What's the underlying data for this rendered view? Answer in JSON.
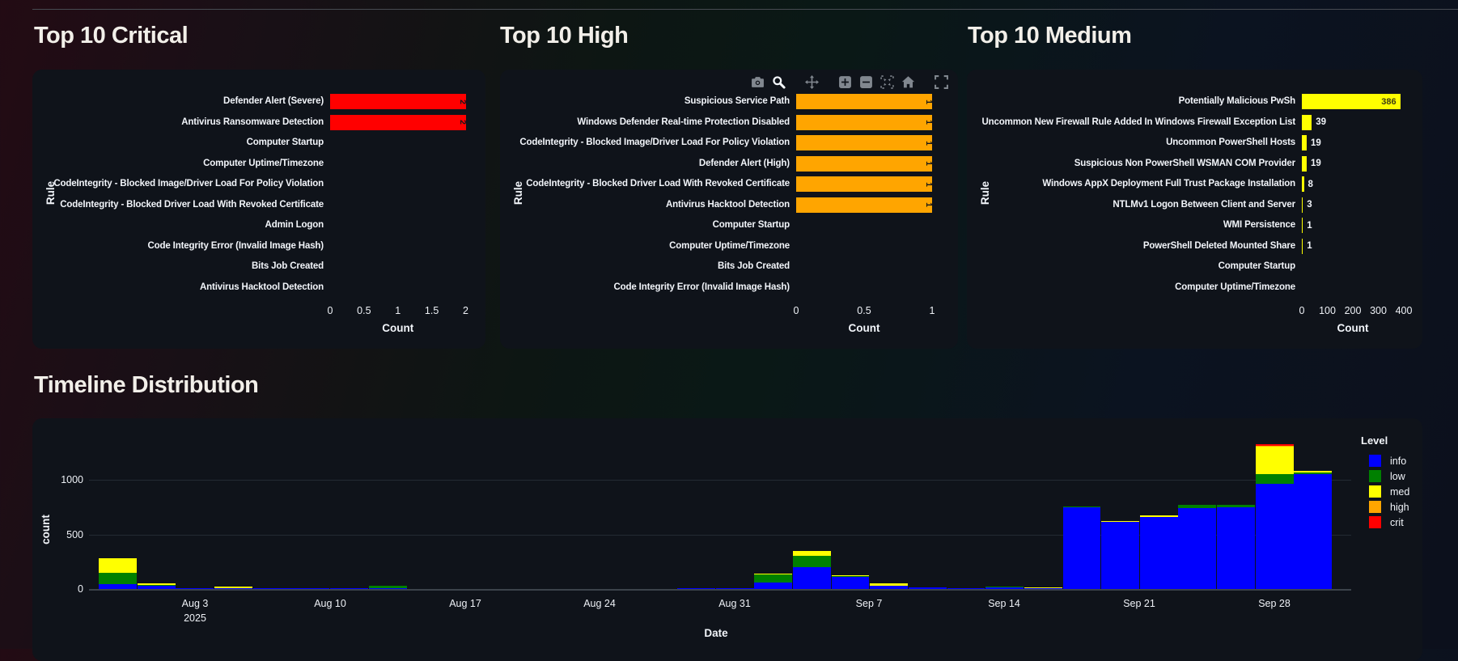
{
  "page": {
    "titles": {
      "critical": "Top 10 Critical",
      "high": "Top 10 High",
      "medium": "Top 10 Medium",
      "timeline": "Timeline Distribution"
    }
  },
  "modebar": {
    "icons": [
      "camera",
      "zoom",
      "pan",
      "zoom-in",
      "zoom-out",
      "autoscale",
      "home",
      "fullscreen"
    ],
    "active": "zoom",
    "color": "#81878f",
    "active_color": "#f4f7fb"
  },
  "chart_data": [
    {
      "id": "critical",
      "type": "bar",
      "orientation": "horizontal",
      "title": "Top 10 Critical",
      "bar_color": "#ff0000",
      "categories": [
        "Defender Alert (Severe)",
        "Antivirus Ransomware Detection",
        "Computer Startup",
        "Computer Uptime/Timezone",
        "CodeIntegrity - Blocked Image/Driver Load For Policy Violation",
        "CodeIntegrity - Blocked Driver Load With Revoked Certificate",
        "Admin Logon",
        "Code Integrity Error (Invalid Image Hash)",
        "Bits Job Created",
        "Antivirus Hacktool Detection"
      ],
      "values": [
        2,
        2,
        0,
        0,
        0,
        0,
        0,
        0,
        0,
        0
      ],
      "xticks": [
        "0",
        "0.5",
        "1",
        "1.5",
        "2"
      ],
      "xtick_values": [
        0,
        0.5,
        1,
        1.5,
        2
      ],
      "xlim": [
        0,
        2
      ],
      "xlabel": "Count",
      "ylabel": "Rule",
      "grid": false
    },
    {
      "id": "high",
      "type": "bar",
      "orientation": "horizontal",
      "title": "Top 10 High",
      "bar_color": "#ffa500",
      "categories": [
        "Suspicious Service Path",
        "Windows Defender Real-time Protection Disabled",
        "CodeIntegrity - Blocked Image/Driver Load For Policy Violation",
        "Defender Alert (High)",
        "CodeIntegrity - Blocked Driver Load With Revoked Certificate",
        "Antivirus Hacktool Detection",
        "Computer Startup",
        "Computer Uptime/Timezone",
        "Bits Job Created",
        "Code Integrity Error (Invalid Image Hash)"
      ],
      "values": [
        1,
        1,
        1,
        1,
        1,
        1,
        0,
        0,
        0,
        0
      ],
      "xticks": [
        "0",
        "0.5",
        "1"
      ],
      "xtick_values": [
        0,
        0.5,
        1
      ],
      "xlim": [
        0,
        1
      ],
      "xlabel": "Count",
      "ylabel": "Rule",
      "grid": false
    },
    {
      "id": "medium",
      "type": "bar",
      "orientation": "horizontal",
      "title": "Top 10 Medium",
      "bar_color": "#ffff00",
      "categories": [
        "Potentially Malicious PwSh",
        "Uncommon New Firewall Rule Added In Windows Firewall Exception List",
        "Uncommon PowerShell Hosts",
        "Suspicious Non PowerShell WSMAN COM Provider",
        "Windows AppX Deployment Full Trust Package Installation",
        "NTLMv1 Logon Between Client and Server",
        "WMI Persistence",
        "PowerShell Deleted Mounted Share",
        "Computer Startup",
        "Computer Uptime/Timezone"
      ],
      "values": [
        386,
        39,
        19,
        19,
        8,
        3,
        1,
        1,
        0,
        0
      ],
      "xticks": [
        "0",
        "100",
        "200",
        "300",
        "400"
      ],
      "xtick_values": [
        0,
        100,
        200,
        300,
        400
      ],
      "xlim": [
        0,
        400
      ],
      "xlabel": "Count",
      "ylabel": "Rule",
      "grid": false
    },
    {
      "id": "timeline",
      "type": "bar",
      "stacked": true,
      "title": "Timeline Distribution",
      "bin_days": 2,
      "categories": [
        "Jul 29",
        "Jul 31",
        "Aug 2",
        "Aug 4",
        "Aug 6",
        "Aug 8",
        "Aug 10",
        "Aug 12",
        "Aug 14",
        "Aug 16",
        "Aug 18",
        "Aug 20",
        "Aug 22",
        "Aug 24",
        "Aug 26",
        "Aug 28",
        "Aug 30",
        "Sep 1",
        "Sep 3",
        "Sep 5",
        "Sep 7",
        "Sep 9",
        "Sep 11",
        "Sep 13",
        "Sep 15",
        "Sep 17",
        "Sep 19",
        "Sep 21",
        "Sep 23",
        "Sep 25",
        "Sep 27",
        "Sep 29"
      ],
      "series": [
        {
          "name": "info",
          "color": "#0000ff",
          "values": [
            45,
            30,
            8,
            3,
            8,
            8,
            3,
            4,
            0,
            0,
            0,
            0,
            0,
            0,
            0,
            8,
            8,
            60,
            200,
            110,
            28,
            15,
            10,
            12,
            6,
            745,
            615,
            660,
            740,
            745,
            960,
            1055
          ]
        },
        {
          "name": "low",
          "color": "#008000",
          "values": [
            105,
            10,
            0,
            0,
            0,
            0,
            0,
            18,
            0,
            0,
            0,
            0,
            0,
            0,
            0,
            0,
            0,
            75,
            105,
            8,
            0,
            0,
            0,
            4,
            0,
            8,
            0,
            0,
            30,
            25,
            90,
            10
          ]
        },
        {
          "name": "med",
          "color": "#ffff00",
          "values": [
            135,
            15,
            0,
            10,
            0,
            0,
            0,
            0,
            0,
            0,
            0,
            0,
            0,
            0,
            0,
            0,
            0,
            8,
            45,
            7,
            22,
            0,
            0,
            0,
            6,
            0,
            8,
            12,
            0,
            0,
            253,
            17
          ]
        },
        {
          "name": "high",
          "color": "#ffa500",
          "values": [
            0,
            0,
            0,
            0,
            0,
            0,
            0,
            0,
            0,
            0,
            0,
            0,
            0,
            0,
            0,
            0,
            0,
            0,
            0,
            0,
            0,
            0,
            0,
            0,
            0,
            0,
            0,
            0,
            0,
            0,
            5,
            0
          ]
        },
        {
          "name": "crit",
          "color": "#ff0000",
          "values": [
            0,
            0,
            0,
            0,
            0,
            0,
            0,
            0,
            0,
            0,
            0,
            0,
            0,
            0,
            0,
            0,
            0,
            0,
            0,
            0,
            0,
            0,
            0,
            0,
            0,
            0,
            0,
            0,
            0,
            0,
            17,
            0
          ]
        }
      ],
      "xticklabels": [
        {
          "label": "Aug 3",
          "sub": "2025"
        },
        {
          "label": "Aug 10"
        },
        {
          "label": "Aug 17"
        },
        {
          "label": "Aug 24"
        },
        {
          "label": "Aug 31"
        },
        {
          "label": "Sep 7"
        },
        {
          "label": "Sep 14"
        },
        {
          "label": "Sep 21"
        },
        {
          "label": "Sep 28"
        }
      ],
      "yticks": [
        "0",
        "500",
        "1000"
      ],
      "ytick_values": [
        0,
        500,
        1000
      ],
      "xlabel": "Date",
      "ylabel": "count",
      "legend_title": "Level",
      "legend_position": "right",
      "grid": true
    }
  ]
}
